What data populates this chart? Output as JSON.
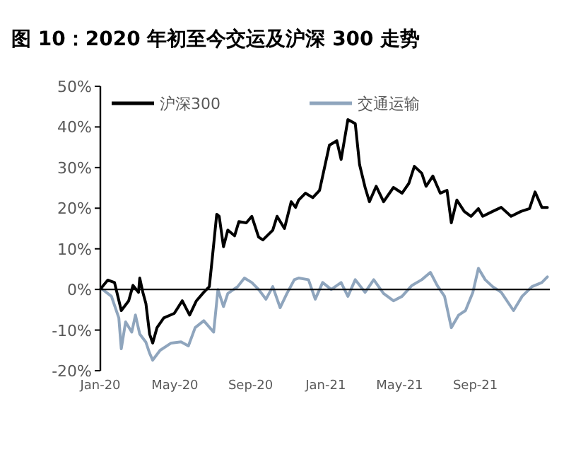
{
  "chart_data": {
    "type": "line",
    "title": "图 10：2020 年初至今交运及沪深 300 走势",
    "ylim": [
      -20,
      50
    ],
    "yticks": [
      {
        "value": -20,
        "label": "-20%"
      },
      {
        "value": -10,
        "label": "-10%"
      },
      {
        "value": 0,
        "label": "0%"
      },
      {
        "value": 10,
        "label": "10%"
      },
      {
        "value": 20,
        "label": "20%"
      },
      {
        "value": 30,
        "label": "30%"
      },
      {
        "value": 40,
        "label": "40%"
      },
      {
        "value": 50,
        "label": "50%"
      }
    ],
    "xlim": [
      "2020-01-01",
      "2021-12-31"
    ],
    "xticks": [
      {
        "value": "2020-01-01",
        "label": "Jan-20"
      },
      {
        "value": "2020-05-01",
        "label": "May-20"
      },
      {
        "value": "2020-09-01",
        "label": "Sep-20"
      },
      {
        "value": "2021-01-01",
        "label": "Jan-21"
      },
      {
        "value": "2021-05-01",
        "label": "May-21"
      },
      {
        "value": "2021-09-01",
        "label": "Sep-21"
      }
    ],
    "ref_lines": [
      {
        "axis": "y",
        "value": 0,
        "color": "#000000"
      }
    ],
    "legend": "top left",
    "grid": false,
    "line_style": "solid",
    "series": [
      {
        "name": "沪深300",
        "color": "#000000",
        "x": [
          "2020-01-02",
          "2020-01-13",
          "2020-01-24",
          "2020-02-04",
          "2020-02-16",
          "2020-02-23",
          "2020-03-03",
          "2020-03-05",
          "2020-03-10",
          "2020-03-15",
          "2020-03-21",
          "2020-03-26",
          "2020-04-02",
          "2020-04-13",
          "2020-04-30",
          "2020-05-13",
          "2020-05-25",
          "2020-06-05",
          "2020-06-17",
          "2020-06-26",
          "2020-07-01",
          "2020-07-08",
          "2020-07-12",
          "2020-07-19",
          "2020-07-26",
          "2020-08-06",
          "2020-08-13",
          "2020-08-25",
          "2020-09-03",
          "2020-09-14",
          "2020-09-21",
          "2020-10-07",
          "2020-10-14",
          "2020-10-26",
          "2020-11-06",
          "2020-11-13",
          "2020-11-18",
          "2020-11-29",
          "2020-12-11",
          "2020-12-22",
          "2021-01-07",
          "2021-01-19",
          "2021-01-26",
          "2021-02-06",
          "2021-02-18",
          "2021-02-25",
          "2021-03-06",
          "2021-03-13",
          "2021-03-24",
          "2021-04-05",
          "2021-04-21",
          "2021-05-05",
          "2021-05-16",
          "2021-05-25",
          "2021-06-06",
          "2021-06-13",
          "2021-06-24",
          "2021-07-06",
          "2021-07-17",
          "2021-07-24",
          "2021-08-02",
          "2021-08-14",
          "2021-08-25",
          "2021-09-06",
          "2021-09-13",
          "2021-09-29",
          "2021-10-13",
          "2021-10-29",
          "2021-11-14",
          "2021-11-28",
          "2021-12-07",
          "2021-12-18",
          "2021-12-27"
        ],
        "values": [
          0.3,
          2.3,
          1.7,
          -5.2,
          -2.8,
          1,
          -0.7,
          2.8,
          -0.7,
          -3.5,
          -11,
          -13.2,
          -9.4,
          -7,
          -5.9,
          -2.8,
          -6.3,
          -2.8,
          -0.7,
          0.7,
          8,
          18.5,
          18,
          10.5,
          14.6,
          13.2,
          16.7,
          16.4,
          18,
          12.9,
          12.2,
          14.6,
          18,
          15,
          21.6,
          20.2,
          22,
          23.7,
          22.6,
          24.4,
          35.5,
          36.6,
          32,
          41.8,
          40.8,
          30.7,
          25.1,
          21.6,
          25.4,
          21.6,
          25.1,
          23.7,
          26.1,
          30.3,
          28.6,
          25.4,
          27.9,
          23.7,
          24.4,
          16.4,
          22,
          19.2,
          18,
          19.9,
          18,
          19.2,
          20.2,
          18,
          19.2,
          19.9,
          24,
          20.2,
          20.2
        ]
      },
      {
        "name": "交通运输",
        "color": "#8fa5bd",
        "x": [
          "2020-01-02",
          "2020-01-19",
          "2020-01-31",
          "2020-02-04",
          "2020-02-11",
          "2020-02-21",
          "2020-02-27",
          "2020-03-05",
          "2020-03-15",
          "2020-03-21",
          "2020-03-26",
          "2020-04-07",
          "2020-04-25",
          "2020-05-11",
          "2020-05-23",
          "2020-06-03",
          "2020-06-17",
          "2020-07-03",
          "2020-07-10",
          "2020-07-19",
          "2020-07-26",
          "2020-08-11",
          "2020-08-22",
          "2020-09-03",
          "2020-09-14",
          "2020-09-26",
          "2020-10-07",
          "2020-10-19",
          "2020-10-30",
          "2020-11-11",
          "2020-11-18",
          "2020-12-04",
          "2020-12-15",
          "2020-12-27",
          "2021-01-10",
          "2021-01-26",
          "2021-02-06",
          "2021-02-18",
          "2021-03-06",
          "2021-03-20",
          "2021-04-05",
          "2021-04-21",
          "2021-05-05",
          "2021-05-21",
          "2021-06-06",
          "2021-06-20",
          "2021-07-01",
          "2021-07-13",
          "2021-07-24",
          "2021-08-05",
          "2021-08-16",
          "2021-08-28",
          "2021-09-06",
          "2021-09-17",
          "2021-09-29",
          "2021-10-13",
          "2021-11-02",
          "2021-11-16",
          "2021-12-02",
          "2021-12-18",
          "2021-12-27"
        ],
        "values": [
          0.3,
          -1.7,
          -7,
          -14.6,
          -8,
          -10.5,
          -6.3,
          -11,
          -13,
          -15.7,
          -17.4,
          -15,
          -13.2,
          -12.9,
          -13.9,
          -9.4,
          -7.7,
          -10.5,
          0,
          -4.2,
          -1,
          0.7,
          2.8,
          1.7,
          0,
          -2.4,
          0.7,
          -4.5,
          -1,
          2.4,
          2.8,
          2.4,
          -2.4,
          1.7,
          0,
          1.7,
          -1.7,
          2.4,
          -0.7,
          2.4,
          -1,
          -2.8,
          -1.7,
          1,
          2.4,
          4.2,
          1,
          -1.7,
          -9.4,
          -6.3,
          -5.2,
          -0.7,
          5.2,
          2.4,
          0.7,
          -0.7,
          -5.2,
          -1.7,
          0.7,
          1.7,
          3.1
        ]
      }
    ]
  }
}
